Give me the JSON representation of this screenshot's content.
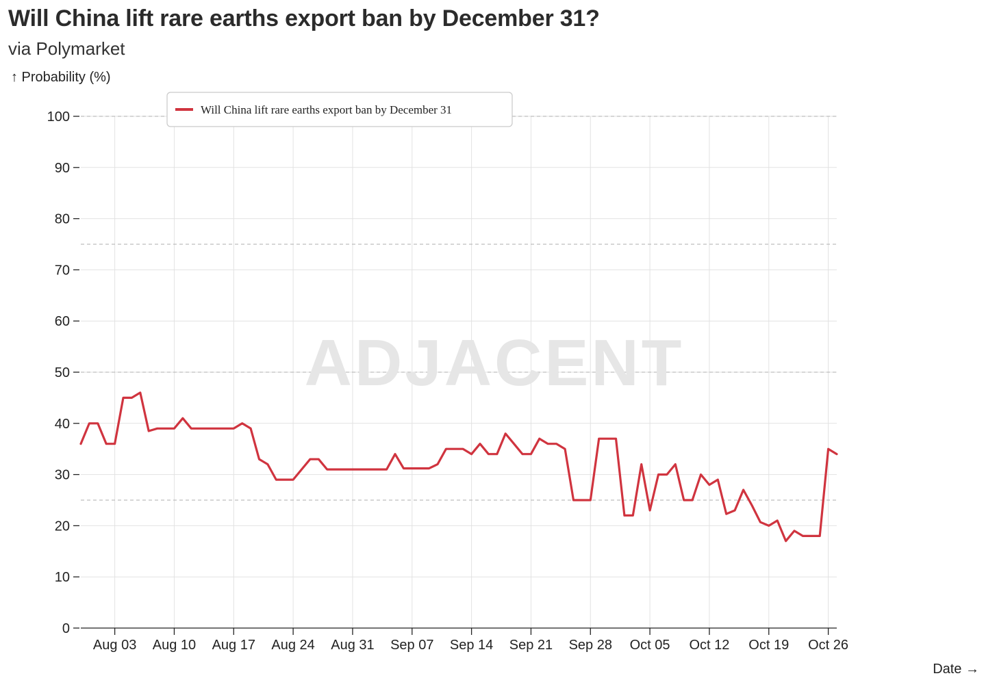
{
  "header": {
    "title": "Will China lift rare earths export ban by December 31?",
    "subtitle": "via Polymarket"
  },
  "watermark": "ADJACENT",
  "colors": {
    "series": "#d0343f",
    "grid": "#e2e2e2",
    "dashed": "#bdbdbd"
  },
  "chart_data": {
    "type": "line",
    "title": "Will China lift rare earths export ban by December 31?",
    "subtitle": "via Polymarket",
    "ylabel": "↑ Probability (%)",
    "xlabel": "Date →",
    "ylim": [
      0,
      100
    ],
    "xlim": [
      "2025-07-30",
      "2025-10-27"
    ],
    "yticks": [
      0,
      10,
      20,
      30,
      40,
      50,
      60,
      70,
      80,
      90,
      100
    ],
    "xticks": [
      {
        "date": "2025-08-03",
        "label": "Aug 03"
      },
      {
        "date": "2025-08-10",
        "label": "Aug 10"
      },
      {
        "date": "2025-08-17",
        "label": "Aug 17"
      },
      {
        "date": "2025-08-24",
        "label": "Aug 24"
      },
      {
        "date": "2025-08-31",
        "label": "Aug 31"
      },
      {
        "date": "2025-09-07",
        "label": "Sep 07"
      },
      {
        "date": "2025-09-14",
        "label": "Sep 14"
      },
      {
        "date": "2025-09-21",
        "label": "Sep 21"
      },
      {
        "date": "2025-09-28",
        "label": "Sep 28"
      },
      {
        "date": "2025-10-05",
        "label": "Oct 05"
      },
      {
        "date": "2025-10-12",
        "label": "Oct 12"
      },
      {
        "date": "2025-10-19",
        "label": "Oct 19"
      },
      {
        "date": "2025-10-26",
        "label": "Oct 26"
      }
    ],
    "reference_lines": [
      25,
      50,
      75,
      100
    ],
    "grid": true,
    "legend_position": "top-left",
    "series": [
      {
        "name": "Will China lift rare earths export ban by December 31",
        "color": "#d0343f",
        "points": [
          [
            "2025-07-30",
            36
          ],
          [
            "2025-07-31",
            40
          ],
          [
            "2025-08-01",
            40
          ],
          [
            "2025-08-02",
            36
          ],
          [
            "2025-08-03",
            36
          ],
          [
            "2025-08-04",
            45
          ],
          [
            "2025-08-05",
            45
          ],
          [
            "2025-08-06",
            46
          ],
          [
            "2025-08-07",
            38.5
          ],
          [
            "2025-08-08",
            39
          ],
          [
            "2025-08-09",
            39
          ],
          [
            "2025-08-10",
            39
          ],
          [
            "2025-08-11",
            41
          ],
          [
            "2025-08-12",
            39
          ],
          [
            "2025-08-13",
            39
          ],
          [
            "2025-08-14",
            39
          ],
          [
            "2025-08-15",
            39
          ],
          [
            "2025-08-16",
            39
          ],
          [
            "2025-08-17",
            39
          ],
          [
            "2025-08-18",
            40
          ],
          [
            "2025-08-19",
            39
          ],
          [
            "2025-08-20",
            33
          ],
          [
            "2025-08-21",
            32
          ],
          [
            "2025-08-22",
            29
          ],
          [
            "2025-08-23",
            29
          ],
          [
            "2025-08-24",
            29
          ],
          [
            "2025-08-25",
            31
          ],
          [
            "2025-08-26",
            33
          ],
          [
            "2025-08-27",
            33
          ],
          [
            "2025-08-28",
            31
          ],
          [
            "2025-08-29",
            31
          ],
          [
            "2025-08-30",
            31
          ],
          [
            "2025-08-31",
            31
          ],
          [
            "2025-09-01",
            31
          ],
          [
            "2025-09-02",
            31
          ],
          [
            "2025-09-03",
            31
          ],
          [
            "2025-09-04",
            31
          ],
          [
            "2025-09-05",
            34
          ],
          [
            "2025-09-06",
            31.2
          ],
          [
            "2025-09-07",
            31.2
          ],
          [
            "2025-09-08",
            31.2
          ],
          [
            "2025-09-09",
            31.2
          ],
          [
            "2025-09-10",
            32
          ],
          [
            "2025-09-11",
            35
          ],
          [
            "2025-09-12",
            35
          ],
          [
            "2025-09-13",
            35
          ],
          [
            "2025-09-14",
            34
          ],
          [
            "2025-09-15",
            36
          ],
          [
            "2025-09-16",
            34
          ],
          [
            "2025-09-17",
            34
          ],
          [
            "2025-09-18",
            38
          ],
          [
            "2025-09-19",
            36
          ],
          [
            "2025-09-20",
            34
          ],
          [
            "2025-09-21",
            34
          ],
          [
            "2025-09-22",
            37
          ],
          [
            "2025-09-23",
            36
          ],
          [
            "2025-09-24",
            36
          ],
          [
            "2025-09-25",
            35
          ],
          [
            "2025-09-26",
            25
          ],
          [
            "2025-09-27",
            25
          ],
          [
            "2025-09-28",
            25
          ],
          [
            "2025-09-29",
            37
          ],
          [
            "2025-09-30",
            37
          ],
          [
            "2025-10-01",
            37
          ],
          [
            "2025-10-02",
            22
          ],
          [
            "2025-10-03",
            22
          ],
          [
            "2025-10-04",
            32
          ],
          [
            "2025-10-05",
            23
          ],
          [
            "2025-10-06",
            30
          ],
          [
            "2025-10-07",
            30
          ],
          [
            "2025-10-08",
            32
          ],
          [
            "2025-10-09",
            25
          ],
          [
            "2025-10-10",
            25
          ],
          [
            "2025-10-11",
            30
          ],
          [
            "2025-10-12",
            28
          ],
          [
            "2025-10-13",
            29
          ],
          [
            "2025-10-14",
            22.3
          ],
          [
            "2025-10-15",
            23
          ],
          [
            "2025-10-16",
            27
          ],
          [
            "2025-10-17",
            24
          ],
          [
            "2025-10-18",
            20.7
          ],
          [
            "2025-10-19",
            20
          ],
          [
            "2025-10-20",
            21
          ],
          [
            "2025-10-21",
            17
          ],
          [
            "2025-10-22",
            19
          ],
          [
            "2025-10-23",
            18
          ],
          [
            "2025-10-24",
            18
          ],
          [
            "2025-10-25",
            18
          ],
          [
            "2025-10-26",
            35
          ],
          [
            "2025-10-27",
            34
          ]
        ]
      }
    ]
  }
}
